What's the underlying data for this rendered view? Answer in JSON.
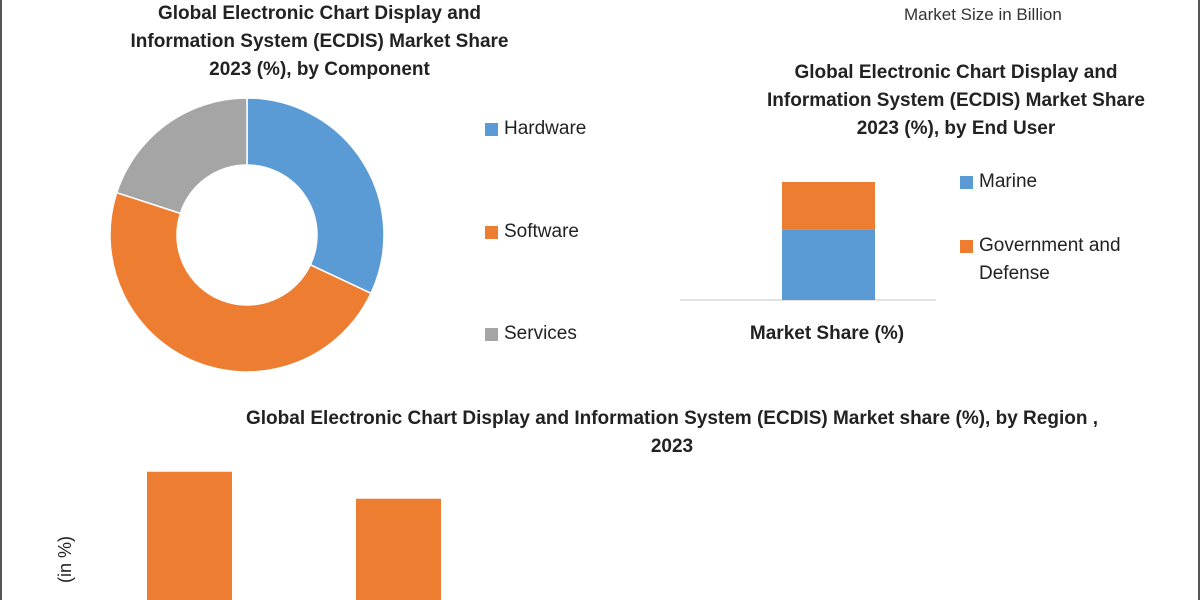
{
  "top_right_caption": "Market Size in Billion",
  "chart_data": [
    {
      "type": "pie",
      "donut": true,
      "title": "Global Electronic Chart Display and Information System (ECDIS) Market Share 2023 (%), by Component",
      "categories": [
        "Hardware",
        "Software",
        "Services"
      ],
      "values": [
        32,
        48,
        20
      ],
      "colors": [
        "#5b9bd5",
        "#ed7d31",
        "#a5a5a5"
      ],
      "legend_position": "right"
    },
    {
      "type": "bar",
      "stacked": true,
      "title": "Global Electronic Chart Display and Information System (ECDIS) Market Share 2023 (%), by End User",
      "categories": [
        "Market Share (%)"
      ],
      "series": [
        {
          "name": "Marine",
          "values": [
            60
          ],
          "color": "#5b9bd5"
        },
        {
          "name": "Government and Defense",
          "values": [
            40
          ],
          "color": "#ed7d31"
        }
      ],
      "ylim": [
        0,
        100
      ],
      "legend_position": "right"
    },
    {
      "type": "bar",
      "title": "Global Electronic Chart Display and Information System (ECDIS) Market share (%), by Region , 2023",
      "ylabel": "(in %)",
      "categories": [
        "",
        ""
      ],
      "values": [
        38,
        30
      ],
      "color": "#ed7d31",
      "ylim": [
        0,
        40
      ]
    }
  ]
}
